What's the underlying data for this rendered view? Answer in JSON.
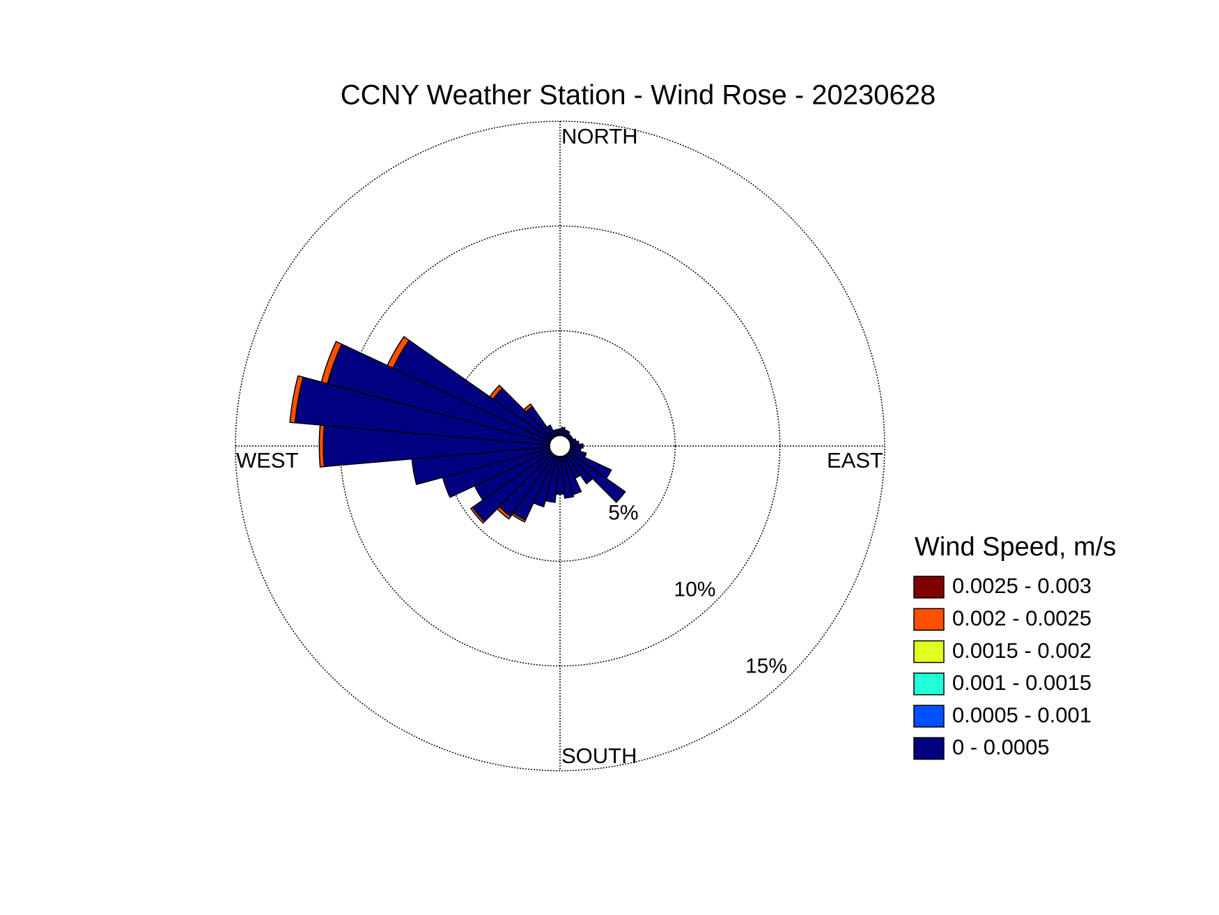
{
  "chart_data": {
    "type": "windrose",
    "title": "CCNY Weather Station - Wind Rose - 20230628",
    "direction_labels": [
      "NORTH",
      "EAST",
      "SOUTH",
      "WEST"
    ],
    "legend_title": "Wind Speed, m/s",
    "x": [
      0,
      10,
      20,
      30,
      40,
      50,
      60,
      70,
      80,
      90,
      100,
      110,
      120,
      130,
      140,
      150,
      160,
      170,
      180,
      190,
      200,
      210,
      220,
      230,
      240,
      250,
      260,
      270,
      280,
      290,
      300,
      310,
      320,
      330,
      340,
      350
    ],
    "ylim": [
      0,
      15
    ],
    "yticks": [
      {
        "value": 5,
        "label": "5%"
      },
      {
        "value": 10,
        "label": "10%"
      },
      {
        "value": 15,
        "label": "15%"
      }
    ],
    "series": [
      {
        "name": "0 - 0.0005",
        "color": "#000080",
        "values": [
          0.3,
          0.4,
          0.3,
          0.3,
          0.2,
          0.2,
          0.2,
          0.3,
          0.4,
          0.6,
          0.5,
          0.8,
          2.2,
          3.3,
          1.7,
          1.2,
          1.9,
          2.0,
          1.8,
          2.2,
          2.5,
          3.4,
          3.6,
          4.6,
          4.0,
          5.3,
          6.6,
          10.8,
          12.2,
          11.0,
          8.3,
          3.4,
          1.8,
          0.6,
          0.3,
          0.3
        ]
      },
      {
        "name": "0.0005 - 0.001",
        "color": "#0050ff",
        "values": [
          0,
          0,
          0,
          0,
          0,
          0,
          0,
          0,
          0,
          0,
          0,
          0,
          0,
          0,
          0,
          0,
          0,
          0,
          0,
          0,
          0,
          0,
          0,
          0,
          0,
          0,
          0,
          0,
          0,
          0,
          0,
          0,
          0,
          0,
          0,
          0
        ]
      },
      {
        "name": "0.001 - 0.0015",
        "color": "#20ffd8",
        "values": [
          0,
          0,
          0,
          0,
          0,
          0,
          0,
          0,
          0,
          0,
          0,
          0,
          0,
          0,
          0,
          0,
          0,
          0,
          0,
          0,
          0,
          0,
          0,
          0,
          0,
          0,
          0,
          0,
          0,
          0,
          0,
          0,
          0,
          0,
          0,
          0
        ]
      },
      {
        "name": "0.0015 - 0.002",
        "color": "#e0ff20",
        "values": [
          0,
          0,
          0,
          0,
          0,
          0,
          0,
          0,
          0,
          0,
          0,
          0,
          0,
          0,
          0,
          0,
          0,
          0,
          0,
          0,
          0,
          0,
          0,
          0,
          0,
          0,
          0,
          0,
          0,
          0,
          0,
          0,
          0,
          0,
          0,
          0
        ]
      },
      {
        "name": "0.002 - 0.0025",
        "color": "#ff5000",
        "values": [
          0,
          0,
          0,
          0,
          0,
          0,
          0,
          0,
          0,
          0,
          0,
          0,
          0,
          0,
          0,
          0,
          0,
          0,
          0,
          0,
          0,
          0.1,
          0.15,
          0.1,
          0,
          0,
          0,
          0.2,
          0.25,
          0.3,
          0.3,
          0.2,
          0.15,
          0,
          0,
          0
        ]
      },
      {
        "name": "0.0025 - 0.003",
        "color": "#800000",
        "values": [
          0,
          0,
          0,
          0,
          0,
          0,
          0,
          0,
          0,
          0,
          0,
          0,
          0,
          0,
          0,
          0,
          0,
          0,
          0,
          0,
          0,
          0,
          0,
          0,
          0,
          0,
          0,
          0,
          0,
          0,
          0,
          0,
          0,
          0,
          0,
          0
        ]
      }
    ]
  }
}
